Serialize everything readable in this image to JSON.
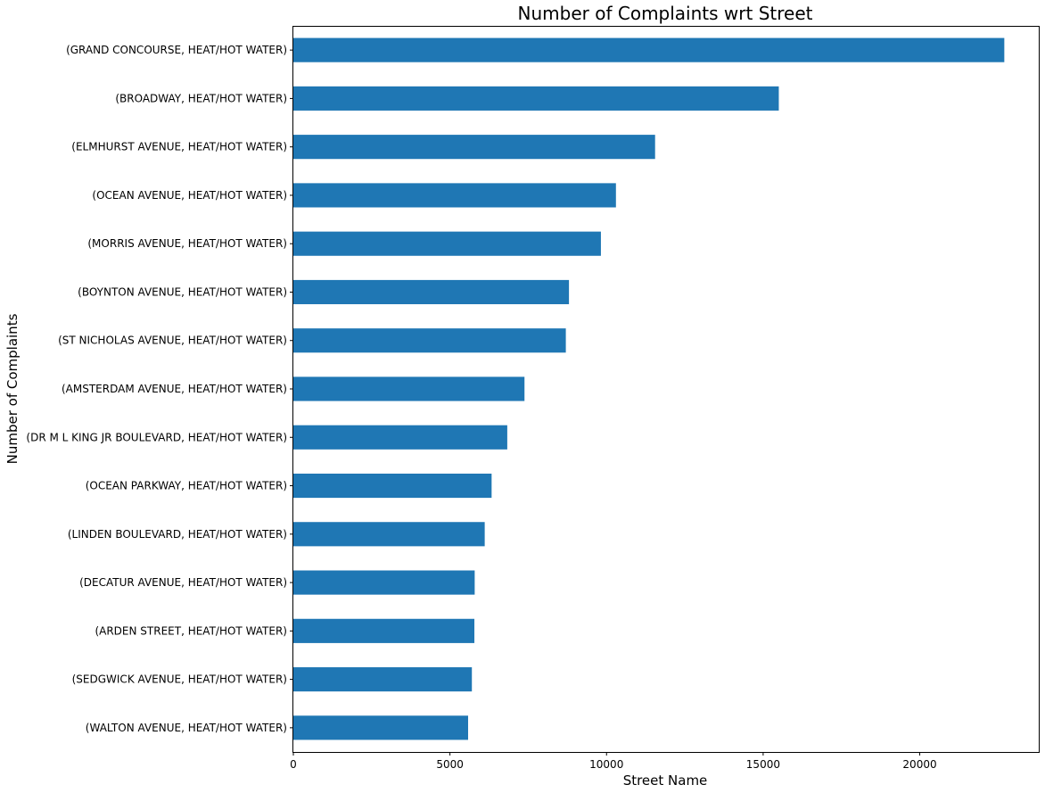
{
  "chart_data": {
    "type": "bar",
    "orientation": "horizontal",
    "title": "Number of Complaints wrt Street",
    "xlabel": "Street Name",
    "ylabel": "Number of Complaints",
    "xlim": [
      0,
      23800
    ],
    "xticks": [
      0,
      5000,
      10000,
      15000,
      20000
    ],
    "xtick_labels": [
      "0",
      "5000",
      "10000",
      "15000",
      "20000"
    ],
    "bar_color": "#1f77b4",
    "grid": false,
    "categories": [
      "(GRAND CONCOURSE, HEAT/HOT WATER)",
      "(BROADWAY, HEAT/HOT WATER)",
      "(ELMHURST AVENUE, HEAT/HOT WATER)",
      "(OCEAN AVENUE, HEAT/HOT WATER)",
      "(MORRIS AVENUE, HEAT/HOT WATER)",
      "(BOYNTON AVENUE, HEAT/HOT WATER)",
      "(ST NICHOLAS AVENUE, HEAT/HOT WATER)",
      "(AMSTERDAM AVENUE, HEAT/HOT WATER)",
      "(DR M L KING JR BOULEVARD, HEAT/HOT WATER)",
      "(OCEAN PARKWAY, HEAT/HOT WATER)",
      "(LINDEN BOULEVARD, HEAT/HOT WATER)",
      "(DECATUR AVENUE, HEAT/HOT WATER)",
      "(ARDEN STREET, HEAT/HOT WATER)",
      "(SEDGWICK AVENUE, HEAT/HOT WATER)",
      "(WALTON AVENUE, HEAT/HOT WATER)"
    ],
    "values": [
      22700,
      15500,
      11550,
      10300,
      9820,
      8800,
      8700,
      7380,
      6830,
      6330,
      6110,
      5790,
      5780,
      5700,
      5580
    ]
  }
}
